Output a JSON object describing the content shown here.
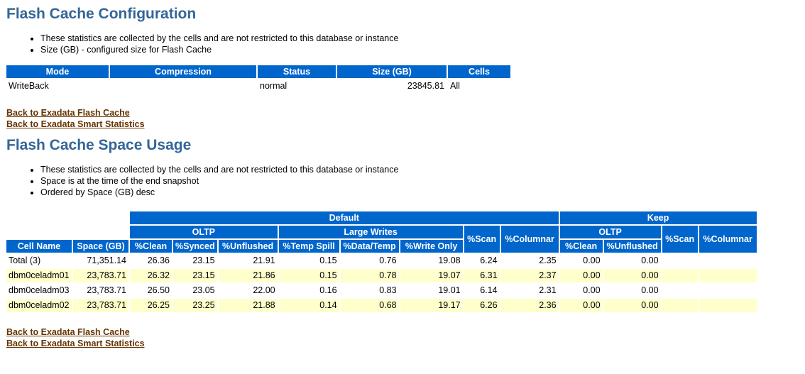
{
  "section1": {
    "title": "Flash Cache Configuration",
    "bullets": [
      "These statistics are collected by the cells and are not restricted to this database or instance",
      "Size (GB) - configured size for Flash Cache"
    ],
    "columns": [
      "Mode",
      "Compression",
      "Status",
      "Size (GB)",
      "Cells"
    ],
    "rows": [
      [
        "WriteBack",
        "",
        "normal",
        "23845.81",
        "All"
      ]
    ]
  },
  "links1": [
    "Back to Exadata Flash Cache",
    "Back to Exadata Smart Statistics"
  ],
  "section2": {
    "title": "Flash Cache Space Usage",
    "bullets": [
      "These statistics are collected by the cells and are not restricted to this database or instance",
      "Space is at the time of the end snapshot",
      "Ordered by Space (GB) desc"
    ],
    "group_headers": {
      "default": "Default",
      "keep": "Keep",
      "oltp": "OLTP",
      "large_writes": "Large Writes",
      "keep_oltp": "OLTP"
    },
    "columns": [
      "Cell Name",
      "Space (GB)",
      "%Clean",
      "%Synced",
      "%Unflushed",
      "%Temp Spill",
      "%Data/Temp",
      "%Write Only",
      "%Scan",
      "%Columnar",
      "%Clean",
      "%Unflushed",
      "%Scan",
      "%Columnar"
    ],
    "rows": [
      [
        "Total (3)",
        "71,351.14",
        "26.36",
        "23.15",
        "21.91",
        "0.15",
        "0.76",
        "19.08",
        "6.24",
        "2.35",
        "0.00",
        "0.00",
        "",
        ""
      ],
      [
        "dbm0celadm01",
        "23,783.71",
        "26.32",
        "23.15",
        "21.86",
        "0.15",
        "0.78",
        "19.07",
        "6.31",
        "2.37",
        "0.00",
        "0.00",
        "",
        ""
      ],
      [
        "dbm0celadm03",
        "23,783.71",
        "26.50",
        "23.05",
        "22.00",
        "0.16",
        "0.83",
        "19.01",
        "6.14",
        "2.31",
        "0.00",
        "0.00",
        "",
        ""
      ],
      [
        "dbm0celadm02",
        "23,783.71",
        "26.25",
        "23.25",
        "21.88",
        "0.14",
        "0.68",
        "19.17",
        "6.26",
        "2.36",
        "0.00",
        "0.00",
        "",
        ""
      ]
    ]
  },
  "links2": [
    "Back to Exadata Flash Cache",
    "Back to Exadata Smart Statistics"
  ],
  "colors": {
    "header_bg": "#0066cc",
    "title": "#336699",
    "link": "#663300",
    "alt_row": "#ffffcc"
  }
}
